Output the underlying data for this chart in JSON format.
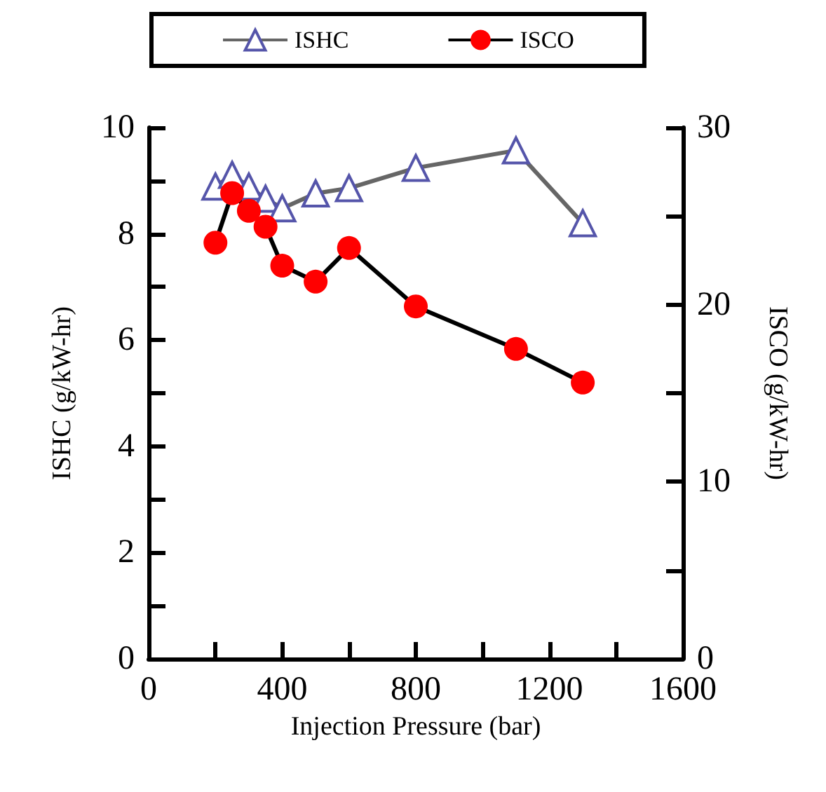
{
  "chart_data": {
    "type": "line",
    "xlabel": "Injection Pressure (bar)",
    "ylabel": "ISHC (g/kW-hr)",
    "y2label": "ISCO (g/kW-hr)",
    "x": [
      200,
      250,
      300,
      350,
      400,
      500,
      600,
      800,
      1100,
      1300
    ],
    "series": [
      {
        "name": "ISHC",
        "color": "#5555aa",
        "marker": "triangle",
        "values": [
          8.89,
          9.11,
          8.89,
          8.66,
          8.48,
          8.76,
          8.86,
          9.24,
          9.57,
          8.2
        ]
      },
      {
        "name": "ISCO",
        "color": "#ff0000",
        "marker": "circle",
        "axis": "y2",
        "values": [
          23.5,
          26.3,
          25.3,
          24.4,
          22.2,
          21.3,
          23.2,
          19.9,
          17.5,
          15.6
        ]
      }
    ],
    "xlim": [
      0,
      1600
    ],
    "xticks": [
      0,
      {
        "value": 200,
        "label": null
      },
      400,
      {
        "value": 600,
        "label": null
      },
      800,
      {
        "value": 1000,
        "label": null
      },
      1200,
      {
        "value": 1400,
        "label": null
      },
      1600
    ],
    "ylim": [
      0,
      10
    ],
    "yticks": [
      0,
      {
        "value": 1,
        "label": null
      },
      2,
      {
        "value": 3,
        "label": null
      },
      4,
      {
        "value": 5,
        "label": null
      },
      6,
      {
        "value": 7,
        "label": null
      },
      8,
      {
        "value": 9,
        "label": null
      },
      10
    ],
    "y2lim": [
      0,
      30
    ],
    "y2ticks": [
      0,
      {
        "value": 5,
        "label": null
      },
      10,
      {
        "value": 15,
        "label": null
      },
      20,
      {
        "value": 25,
        "label": null
      },
      30
    ],
    "grid": false,
    "legend": "top",
    "line_style": "solid"
  }
}
